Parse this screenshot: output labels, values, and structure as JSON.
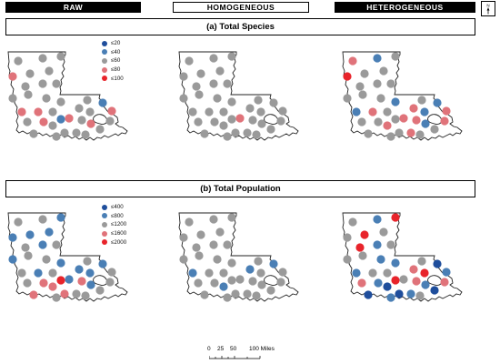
{
  "headers": {
    "raw": "RAW",
    "homogeneous": "HOMOGENEOUS",
    "heterogeneous": "HETEROGENEOUS"
  },
  "north_label": "N",
  "sections": [
    {
      "title": "(a) Total Species",
      "legend": [
        {
          "label": "≤20",
          "color": "#1f4e9c"
        },
        {
          "label": "≤40",
          "color": "#4a7fb5"
        },
        {
          "label": "≤60",
          "color": "#9a9a9a"
        },
        {
          "label": "≤80",
          "color": "#e0737a"
        },
        {
          "label": "≤100",
          "color": "#e8242b"
        }
      ]
    },
    {
      "title": "(b) Total Population",
      "legend": [
        {
          "label": "≤400",
          "color": "#1f4e9c"
        },
        {
          "label": "≤800",
          "color": "#4a7fb5"
        },
        {
          "label": "≤1200",
          "color": "#9a9a9a"
        },
        {
          "label": "≤1600",
          "color": "#e0737a"
        },
        {
          "label": "≤2000",
          "color": "#e8242b"
        }
      ]
    }
  ],
  "scale_bar": {
    "labels": [
      "0",
      "25",
      "50",
      "100 Miles"
    ]
  },
  "colors": {
    "class1": "#1f4e9c",
    "class2": "#4a7fb5",
    "class3": "#9a9a9a",
    "class4": "#e0737a",
    "class5": "#e8242b"
  }
}
